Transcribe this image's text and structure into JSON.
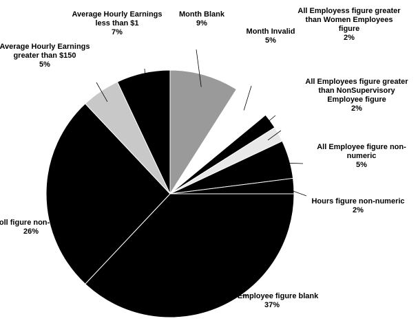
{
  "chart_data": {
    "type": "pie",
    "categories": [
      "Month Blank",
      "Month Invalid",
      "All Employess figure greater than Women Employees figure",
      "All Employees figure greater than NonSupervisory Employee figure",
      "All Employee figure non-numeric",
      "Hours figure non-numeric",
      "All Employee figure blank",
      "Payroll figure non-numeric",
      "Average Hourly Earnings greater than $150",
      "Average Hourly Earnings less than $1"
    ],
    "values": [
      9,
      5,
      2,
      2,
      5,
      2,
      37,
      26,
      5,
      7
    ],
    "value_labels": [
      "9%",
      "5%",
      "2%",
      "2%",
      "5%",
      "2%",
      "37%",
      "26%",
      "5%",
      "7%"
    ],
    "colors": [
      "#9a9a9a",
      "#ffffff",
      "#000000",
      "#e8e8e8",
      "#000000",
      "#000000",
      "#000000",
      "#000000",
      "#c8c8c8",
      "#000000"
    ]
  }
}
